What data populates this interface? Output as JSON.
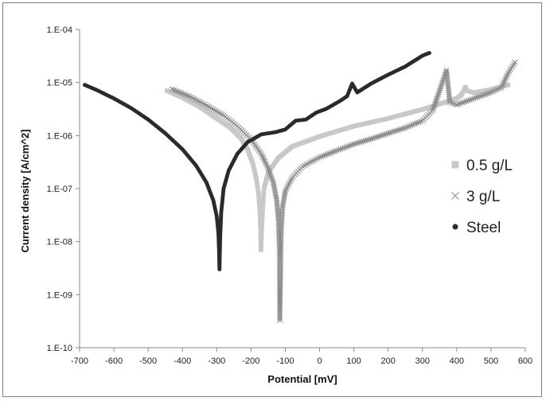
{
  "chart_data": {
    "type": "scatter",
    "xlabel": "Potential [mV]",
    "ylabel": "Current density [A/cm^2]",
    "xlim": [
      -700,
      600
    ],
    "ylim": [
      1e-10,
      0.0001
    ],
    "y_scale": "log",
    "grid": false,
    "legend_position": "right",
    "x_ticks": [
      -700,
      -600,
      -500,
      -400,
      -300,
      -200,
      -100,
      0,
      100,
      200,
      300,
      400,
      500,
      600
    ],
    "x_tick_labels": [
      "-700",
      "-600",
      "-500",
      "-400",
      "-300",
      "-200",
      "-100",
      "0",
      "100",
      "200",
      "300",
      "400",
      "500",
      "600"
    ],
    "y_ticks": [
      1e-10,
      1e-09,
      1e-08,
      1e-07,
      1e-06,
      1e-05,
      0.0001
    ],
    "y_tick_labels": [
      "1.E-10",
      "1.E-09",
      "1.E-08",
      "1.E-07",
      "1.E-06",
      "1.E-05",
      "1.E-04"
    ],
    "series": [
      {
        "name": "0.5 g/L",
        "marker": "square",
        "color": "#c8c8c8",
        "points": [
          [
            -445,
            7e-06
          ],
          [
            -400,
            5.2e-06
          ],
          [
            -350,
            3.5e-06
          ],
          [
            -300,
            2.1e-06
          ],
          [
            -260,
            1.4e-06
          ],
          [
            -230,
            9e-07
          ],
          [
            -210,
            5.5e-07
          ],
          [
            -195,
            3e-07
          ],
          [
            -185,
            1.6e-07
          ],
          [
            -178,
            8e-08
          ],
          [
            -174,
            3.5e-08
          ],
          [
            -172,
            1.5e-08
          ],
          [
            -171,
            7e-09
          ],
          [
            -169,
            1.6e-08
          ],
          [
            -166,
            4e-08
          ],
          [
            -162,
            1e-07
          ],
          [
            -150,
            2e-07
          ],
          [
            -120,
            3.8e-07
          ],
          [
            -80,
            6.2e-07
          ],
          [
            0,
            9.6e-07
          ],
          [
            100,
            1.5e-06
          ],
          [
            200,
            2.1e-06
          ],
          [
            300,
            3.1e-06
          ],
          [
            400,
            5e-06
          ],
          [
            415,
            6e-06
          ],
          [
            420,
            7e-06
          ],
          [
            425,
            8.2e-06
          ],
          [
            430,
            7e-06
          ],
          [
            450,
            6.4e-06
          ],
          [
            500,
            7.4e-06
          ],
          [
            550,
            9e-06
          ]
        ]
      },
      {
        "name": "3 g/L",
        "marker": "cross",
        "color": "#8c8c8c",
        "points": [
          [
            -430,
            7.5e-06
          ],
          [
            -380,
            5.5e-06
          ],
          [
            -330,
            3.7e-06
          ],
          [
            -280,
            2.4e-06
          ],
          [
            -240,
            1.5e-06
          ],
          [
            -200,
            8.5e-07
          ],
          [
            -170,
            4.5e-07
          ],
          [
            -150,
            2.4e-07
          ],
          [
            -135,
            1.3e-07
          ],
          [
            -125,
            6e-08
          ],
          [
            -120,
            2.5e-08
          ],
          [
            -117,
            6e-09
          ],
          [
            -116,
            3.3e-10
          ],
          [
            -112,
            1.5e-08
          ],
          [
            -108,
            4.5e-08
          ],
          [
            -100,
            9e-08
          ],
          [
            -80,
            1.6e-07
          ],
          [
            -50,
            2.6e-07
          ],
          [
            0,
            3.9e-07
          ],
          [
            50,
            5.2e-07
          ],
          [
            100,
            6.9e-07
          ],
          [
            150,
            8.6e-07
          ],
          [
            200,
            1.1e-06
          ],
          [
            250,
            1.4e-06
          ],
          [
            300,
            1.9e-06
          ],
          [
            330,
            3e-06
          ],
          [
            350,
            7e-06
          ],
          [
            370,
            1.7e-05
          ],
          [
            380,
            4.2e-06
          ],
          [
            400,
            3.8e-06
          ],
          [
            450,
            5e-06
          ],
          [
            500,
            6.5e-06
          ],
          [
            530,
            8e-06
          ],
          [
            550,
            1.5e-05
          ],
          [
            570,
            2.4e-05
          ]
        ]
      },
      {
        "name": "Steel",
        "marker": "circle",
        "color": "#2a2a2a",
        "points": [
          [
            -685,
            9e-06
          ],
          [
            -650,
            7.2e-06
          ],
          [
            -600,
            5e-06
          ],
          [
            -550,
            3.3e-06
          ],
          [
            -500,
            2e-06
          ],
          [
            -450,
            1.1e-06
          ],
          [
            -400,
            5.5e-07
          ],
          [
            -360,
            2.7e-07
          ],
          [
            -330,
            1.3e-07
          ],
          [
            -310,
            6e-08
          ],
          [
            -300,
            3e-08
          ],
          [
            -295,
            1.4e-08
          ],
          [
            -293,
            6e-09
          ],
          [
            -292,
            3e-09
          ],
          [
            -290,
            1.2e-08
          ],
          [
            -287,
            3.5e-08
          ],
          [
            -280,
            1e-07
          ],
          [
            -265,
            2.2e-07
          ],
          [
            -240,
            4.5e-07
          ],
          [
            -210,
            7.5e-07
          ],
          [
            -170,
            1.05e-06
          ],
          [
            -130,
            1.15e-06
          ],
          [
            -100,
            1.3e-06
          ],
          [
            -70,
            1.9e-06
          ],
          [
            -40,
            2e-06
          ],
          [
            -10,
            2.7e-06
          ],
          [
            20,
            3.2e-06
          ],
          [
            60,
            4.5e-06
          ],
          [
            80,
            5.5e-06
          ],
          [
            95,
            9.5e-06
          ],
          [
            110,
            6.5e-06
          ],
          [
            150,
            9.5e-06
          ],
          [
            200,
            1.4e-05
          ],
          [
            250,
            2e-05
          ],
          [
            300,
            3.2e-05
          ],
          [
            320,
            3.6e-05
          ]
        ]
      }
    ]
  }
}
